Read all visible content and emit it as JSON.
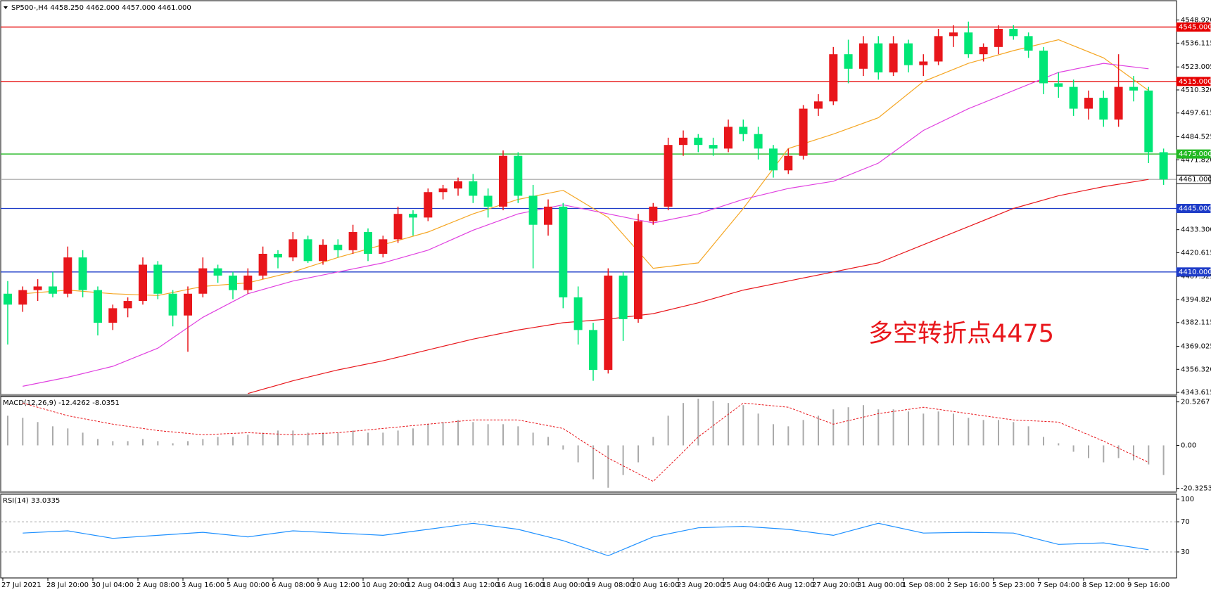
{
  "chart_data": {
    "type": "candlestick",
    "title": "SP500-,H4  4458.250 4462.000 4457.000 4461.000",
    "annotation": "多空转折点4475",
    "categories": [
      "27 Jul 2021",
      "28 Jul 20:00",
      "30 Jul 04:00",
      "2 Aug 08:00",
      "3 Aug 16:00",
      "5 Aug 00:00",
      "6 Aug 08:00",
      "9 Aug 12:00",
      "10 Aug 20:00",
      "12 Aug 04:00",
      "13 Aug 12:00",
      "16 Aug 16:00",
      "18 Aug 00:00",
      "19 Aug 08:00",
      "20 Aug 16:00",
      "23 Aug 20:00",
      "25 Aug 04:00",
      "26 Aug 12:00",
      "27 Aug 20:00",
      "31 Aug 00:00",
      "1 Sep 08:00",
      "2 Sep 16:00",
      "5 Sep 23:00",
      "7 Sep 04:00",
      "8 Sep 12:00",
      "9 Sep 16:00"
    ],
    "candles": [
      [
        4398,
        4405,
        4370,
        4392
      ],
      [
        4392,
        4402,
        4388,
        4400
      ],
      [
        4400,
        4406,
        4394,
        4402
      ],
      [
        4402,
        4410,
        4396,
        4398
      ],
      [
        4398,
        4424,
        4396,
        4418
      ],
      [
        4418,
        4422,
        4396,
        4400
      ],
      [
        4400,
        4402,
        4375,
        4382
      ],
      [
        4382,
        4392,
        4378,
        4390
      ],
      [
        4390,
        4396,
        4385,
        4394
      ],
      [
        4394,
        4418,
        4392,
        4414
      ],
      [
        4414,
        4416,
        4395,
        4398
      ],
      [
        4398,
        4400,
        4380,
        4386
      ],
      [
        4386,
        4402,
        4366,
        4398
      ],
      [
        4398,
        4418,
        4396,
        4412
      ],
      [
        4412,
        4414,
        4404,
        4408
      ],
      [
        4408,
        4410,
        4395,
        4400
      ],
      [
        4400,
        4412,
        4398,
        4408
      ],
      [
        4408,
        4424,
        4406,
        4420
      ],
      [
        4420,
        4422,
        4412,
        4418
      ],
      [
        4418,
        4432,
        4416,
        4428
      ],
      [
        4428,
        4430,
        4415,
        4416
      ],
      [
        4416,
        4428,
        4414,
        4425
      ],
      [
        4425,
        4428,
        4418,
        4422
      ],
      [
        4422,
        4436,
        4420,
        4432
      ],
      [
        4432,
        4434,
        4416,
        4420
      ],
      [
        4420,
        4430,
        4418,
        4428
      ],
      [
        4428,
        4446,
        4426,
        4442
      ],
      [
        4442,
        4444,
        4430,
        4440
      ],
      [
        4440,
        4456,
        4438,
        4454
      ],
      [
        4454,
        4458,
        4450,
        4456
      ],
      [
        4456,
        4462,
        4452,
        4460
      ],
      [
        4460,
        4464,
        4448,
        4452
      ],
      [
        4452,
        4456,
        4440,
        4446
      ],
      [
        4446,
        4477,
        4444,
        4474
      ],
      [
        4474,
        4476,
        4448,
        4452
      ],
      [
        4452,
        4458,
        4412,
        4436
      ],
      [
        4436,
        4450,
        4430,
        4446
      ],
      [
        4446,
        4448,
        4390,
        4396
      ],
      [
        4396,
        4402,
        4370,
        4378
      ],
      [
        4378,
        4382,
        4350,
        4356
      ],
      [
        4356,
        4412,
        4354,
        4408
      ],
      [
        4408,
        4410,
        4372,
        4384
      ],
      [
        4384,
        4442,
        4382,
        4438
      ],
      [
        4438,
        4448,
        4436,
        4446
      ],
      [
        4446,
        4484,
        4444,
        4480
      ],
      [
        4480,
        4488,
        4474,
        4484
      ],
      [
        4484,
        4486,
        4476,
        4480
      ],
      [
        4480,
        4484,
        4474,
        4478
      ],
      [
        4478,
        4494,
        4476,
        4490
      ],
      [
        4490,
        4494,
        4482,
        4486
      ],
      [
        4486,
        4490,
        4472,
        4478
      ],
      [
        4478,
        4480,
        4462,
        4466
      ],
      [
        4466,
        4478,
        4464,
        4474
      ],
      [
        4474,
        4502,
        4472,
        4500
      ],
      [
        4500,
        4508,
        4496,
        4504
      ],
      [
        4504,
        4534,
        4502,
        4530
      ],
      [
        4530,
        4538,
        4514,
        4522
      ],
      [
        4522,
        4540,
        4518,
        4536
      ],
      [
        4536,
        4540,
        4516,
        4520
      ],
      [
        4520,
        4540,
        4518,
        4536
      ],
      [
        4536,
        4538,
        4520,
        4524
      ],
      [
        4524,
        4530,
        4518,
        4526
      ],
      [
        4526,
        4544,
        4524,
        4540
      ],
      [
        4540,
        4546,
        4534,
        4542
      ],
      [
        4542,
        4548,
        4528,
        4530
      ],
      [
        4530,
        4536,
        4526,
        4534
      ],
      [
        4534,
        4546,
        4530,
        4544
      ],
      [
        4544,
        4546,
        4538,
        4540
      ],
      [
        4540,
        4542,
        4528,
        4532
      ],
      [
        4532,
        4534,
        4508,
        4514
      ],
      [
        4514,
        4520,
        4506,
        4512
      ],
      [
        4512,
        4516,
        4496,
        4500
      ],
      [
        4500,
        4510,
        4494,
        4506
      ],
      [
        4506,
        4510,
        4490,
        4494
      ],
      [
        4494,
        4530,
        4490,
        4512
      ],
      [
        4512,
        4518,
        4504,
        4510
      ],
      [
        4510,
        4512,
        4470,
        4476
      ],
      [
        4476,
        4478,
        4458,
        4461
      ]
    ],
    "up_color": "#e8161b",
    "down_color": "#00e676",
    "ylim": [
      4342.1,
      4559.9
    ],
    "yticks": [
      {
        "value": 4548.92,
        "label": "4548.920"
      },
      {
        "value": 4536.115,
        "label": "4536.115"
      },
      {
        "value": 4523.005,
        "label": "4523.005"
      },
      {
        "value": 4510.32,
        "label": "4510.320"
      },
      {
        "value": 4497.615,
        "label": "4497.615"
      },
      {
        "value": 4484.525,
        "label": "4484.525"
      },
      {
        "value": 4471.82,
        "label": "4471.820"
      },
      {
        "value": 4433.3,
        "label": "4433.300"
      },
      {
        "value": 4420.615,
        "label": "4420.615"
      },
      {
        "value": 4407.525,
        "label": "4407.525"
      },
      {
        "value": 4394.82,
        "label": "4394.820"
      },
      {
        "value": 4382.115,
        "label": "4382.115"
      },
      {
        "value": 4369.025,
        "label": "4369.025"
      },
      {
        "value": 4356.32,
        "label": "4356.320"
      },
      {
        "value": 4343.615,
        "label": "4343.615"
      }
    ],
    "levels": [
      {
        "value": 4545,
        "label": "4545.000",
        "color": "#e60000"
      },
      {
        "value": 4515,
        "label": "4515.000",
        "color": "#e60000"
      },
      {
        "value": 4475,
        "label": "4475.000",
        "color": "#22b822"
      },
      {
        "value": 4445,
        "label": "4445.000",
        "color": "#1e3cc8"
      },
      {
        "value": 4410,
        "label": "4410.000",
        "color": "#1e3cc8"
      },
      {
        "value": 4461,
        "label": "4461.000",
        "color": "#b0b0b0"
      }
    ],
    "series": [
      {
        "color": "#f5a623",
        "values": [
          4398,
          4400,
          4398,
          4397,
          4402,
          4404,
          4410,
          4418,
          4425,
          4432,
          4442,
          4450,
          4455,
          4440,
          4412,
          4415,
          4445,
          4478,
          4486,
          4495,
          4515,
          4525,
          4532,
          4538,
          4528,
          4510
        ]
      },
      {
        "color": "#e040e0",
        "values": [
          4347,
          4352,
          4358,
          4368,
          4385,
          4398,
          4405,
          4410,
          4415,
          4422,
          4433,
          4442,
          4447,
          4442,
          4437,
          4442,
          4450,
          4456,
          4460,
          4470,
          4488,
          4500,
          4510,
          4520,
          4525,
          4522
        ]
      },
      {
        "color": "#e8161b",
        "values": [
          null,
          null,
          null,
          null,
          null,
          4343,
          4350,
          4356,
          4361,
          4367,
          4373,
          4378,
          4382,
          4384,
          4387,
          4393,
          4400,
          4405,
          4410,
          4415,
          4425,
          4435,
          4445,
          4452,
          4457,
          4461
        ]
      }
    ],
    "macd": {
      "title": "MACD(12,26,9) -12.4262 -8.0351",
      "histogram": [
        14,
        13,
        11,
        9,
        8,
        6,
        3,
        2,
        2,
        3,
        2,
        1,
        2,
        3,
        4,
        4,
        5,
        6,
        7,
        7,
        6,
        6,
        6,
        7,
        6,
        6,
        7,
        8,
        10,
        11,
        12,
        11,
        10,
        10,
        9,
        6,
        4,
        -2,
        -8,
        -16,
        -20,
        -14,
        -8,
        4,
        14,
        20,
        22,
        21,
        20,
        19,
        15,
        10,
        9,
        12,
        14,
        17,
        18,
        19,
        17,
        17,
        16,
        15,
        16,
        15,
        13,
        12,
        12,
        11,
        9,
        4,
        1,
        -3,
        -6,
        -8,
        -6,
        -7,
        -9,
        -14
      ],
      "signal": [
        20,
        14,
        10,
        7,
        5,
        6,
        5,
        6,
        8,
        10,
        12,
        12,
        8,
        -6,
        -17,
        4,
        20,
        18,
        10,
        15,
        18,
        15,
        12,
        11,
        2,
        -8
      ],
      "ylim": [
        -21.75,
        23.05
      ],
      "yticks": [
        20.5267,
        {
          "value": 0,
          "label": "0.00"
        },
        -20.3253
      ]
    },
    "rsi": {
      "title": "RSI(14) 33.0335",
      "values": [
        55,
        58,
        48,
        52,
        56,
        50,
        58,
        55,
        52,
        60,
        68,
        60,
        45,
        25,
        50,
        62,
        64,
        60,
        52,
        68,
        55,
        56,
        55,
        40,
        42,
        33
      ],
      "color": "#1e90ff",
      "ylim": [
        -4.5,
        106.5
      ],
      "yticks": [
        100,
        70,
        30
      ],
      "levels": [
        70,
        30
      ]
    }
  }
}
